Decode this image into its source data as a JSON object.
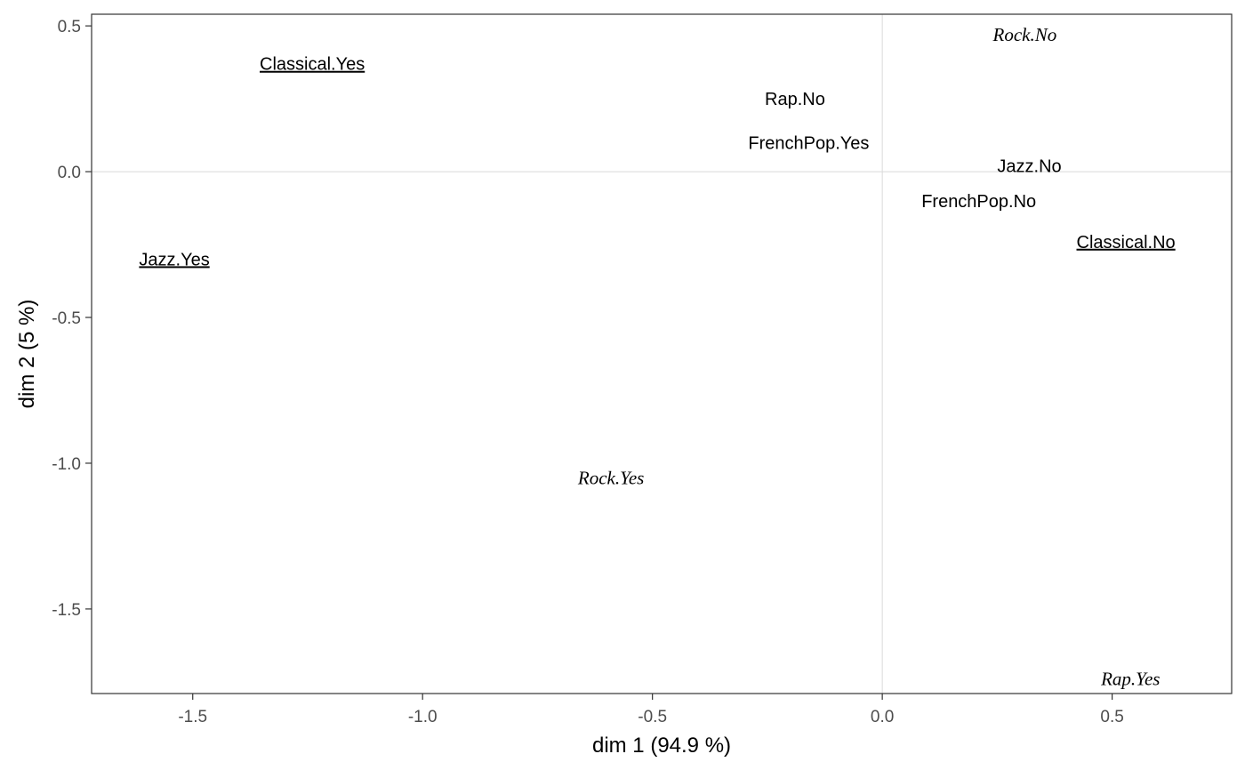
{
  "chart_data": {
    "type": "scatter",
    "xlabel": "dim 1 (94.9 %)",
    "ylabel": "dim 2 (5 %)",
    "xlim": [
      -1.72,
      0.76
    ],
    "ylim": [
      -1.79,
      0.54
    ],
    "x_ticks": [
      {
        "value": -1.5,
        "label": "-1.5"
      },
      {
        "value": -1.0,
        "label": "-1.0"
      },
      {
        "value": -0.5,
        "label": "-0.5"
      },
      {
        "value": 0.0,
        "label": "0.0"
      },
      {
        "value": 0.5,
        "label": "0.5"
      }
    ],
    "y_ticks": [
      {
        "value": 0.5,
        "label": "0.5"
      },
      {
        "value": 0.0,
        "label": "0.0"
      },
      {
        "value": -0.5,
        "label": "-0.5"
      },
      {
        "value": -1.0,
        "label": "-1.0"
      },
      {
        "value": -1.5,
        "label": "-1.5"
      }
    ],
    "reference_lines": {
      "x": 0,
      "y": 0
    },
    "grid": false,
    "points": [
      {
        "label": "Classical.Yes",
        "x": -1.24,
        "y": 0.37,
        "style": "underline"
      },
      {
        "label": "Jazz.Yes",
        "x": -1.54,
        "y": -0.3,
        "style": "underline"
      },
      {
        "label": "Classical.No",
        "x": 0.53,
        "y": -0.24,
        "style": "underline"
      },
      {
        "label": "Rap.No",
        "x": -0.19,
        "y": 0.25,
        "style": "plain"
      },
      {
        "label": "FrenchPop.Yes",
        "x": -0.16,
        "y": 0.1,
        "style": "plain"
      },
      {
        "label": "Jazz.No",
        "x": 0.32,
        "y": 0.02,
        "style": "plain"
      },
      {
        "label": "FrenchPop.No",
        "x": 0.21,
        "y": -0.1,
        "style": "plain"
      },
      {
        "label": "Rock.No",
        "x": 0.31,
        "y": 0.47,
        "style": "italic"
      },
      {
        "label": "Rock.Yes",
        "x": -0.59,
        "y": -1.05,
        "style": "italic"
      },
      {
        "label": "Rap.Yes",
        "x": 0.54,
        "y": -1.74,
        "style": "italic"
      }
    ]
  }
}
